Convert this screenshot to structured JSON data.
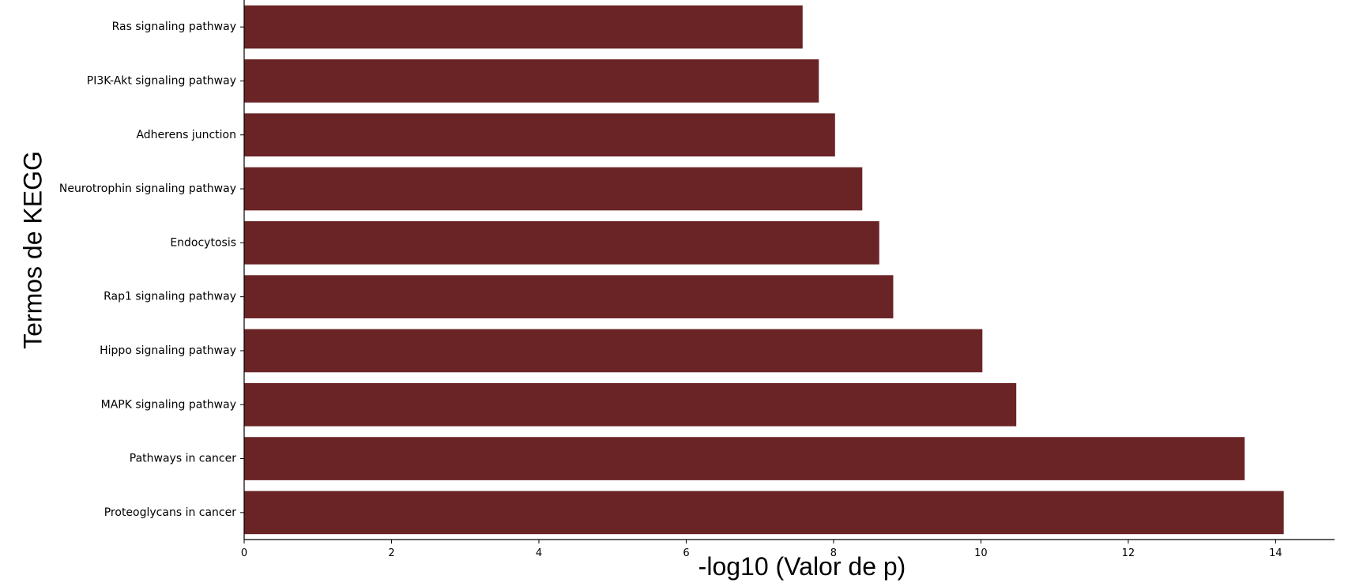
{
  "chart_data": {
    "type": "bar",
    "orientation": "horizontal",
    "title": "",
    "xlabel": "-log10 (Valor de p)",
    "ylabel": "Termos de KEGG",
    "categories": [
      "Ras signaling pathway",
      "PI3K-Akt signaling pathway",
      "Adherens junction",
      "Neurotrophin signaling pathway",
      "Endocytosis",
      "Rap1 signaling pathway",
      "Hippo signaling pathway",
      "MAPK signaling pathway",
      "Pathways in cancer",
      "Proteoglycans in cancer"
    ],
    "values": [
      7.58,
      7.8,
      8.02,
      8.39,
      8.62,
      8.81,
      10.02,
      10.48,
      13.58,
      14.11
    ],
    "xlim": [
      0,
      14.8
    ],
    "xticks": [
      0,
      2,
      4,
      6,
      8,
      10,
      12,
      14
    ],
    "grid": false,
    "legend": "none",
    "bar_color": "#6b2426"
  }
}
